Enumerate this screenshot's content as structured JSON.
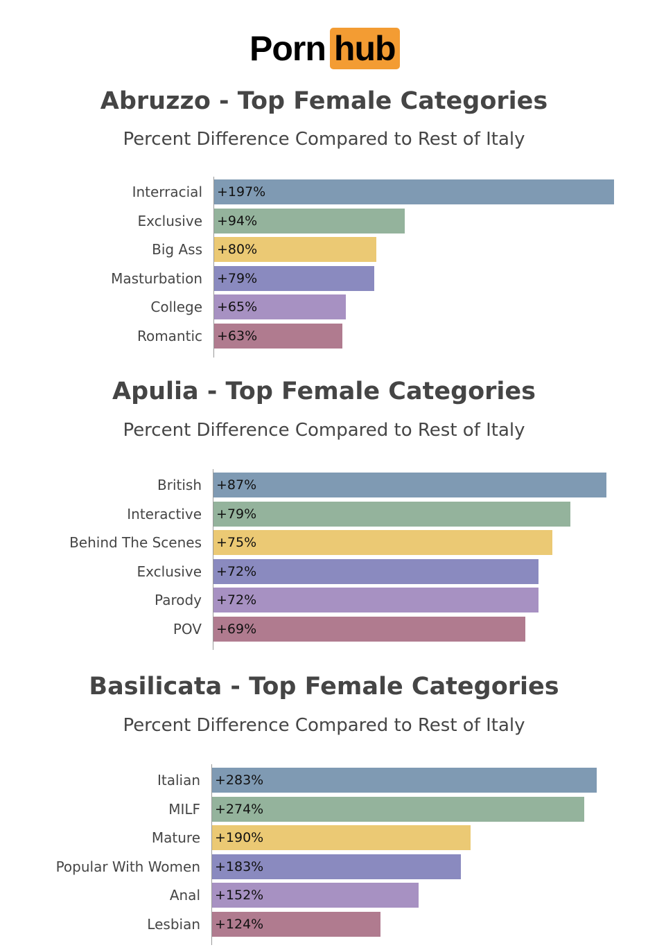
{
  "logo": {
    "part1": "Porn",
    "part2": "hub",
    "accent": "#f39c33"
  },
  "colors": [
    "#7f9ab3",
    "#94b39c",
    "#ebc974",
    "#8a8abf",
    "#a791c2",
    "#b07b8f"
  ],
  "chart_data": [
    {
      "type": "bar",
      "orientation": "horizontal",
      "title": "Abruzzo - Top Female Categories",
      "subtitle": "Percent Difference Compared to Rest of Italy",
      "categories": [
        "Interracial",
        "Exclusive",
        "Big Ass",
        "Masturbation",
        "College",
        "Romantic"
      ],
      "values": [
        197,
        94,
        80,
        79,
        65,
        63
      ],
      "labels": [
        "+197%",
        "+94%",
        "+80%",
        "+79%",
        "+65%",
        "+63%"
      ],
      "grid": false
    },
    {
      "type": "bar",
      "orientation": "horizontal",
      "title": "Apulia - Top Female Categories",
      "subtitle": "Percent Difference Compared to Rest of Italy",
      "categories": [
        "British",
        "Interactive",
        "Behind The Scenes",
        "Exclusive",
        "Parody",
        "POV"
      ],
      "values": [
        87,
        79,
        75,
        72,
        72,
        69
      ],
      "labels": [
        "+87%",
        "+79%",
        "+75%",
        "+72%",
        "+72%",
        "+69%"
      ],
      "grid": false
    },
    {
      "type": "bar",
      "orientation": "horizontal",
      "title": "Basilicata - Top Female Categories",
      "subtitle": "Percent Difference Compared to Rest of Italy",
      "categories": [
        "Italian",
        "MILF",
        "Mature",
        "Popular With Women",
        "Anal",
        "Lesbian"
      ],
      "values": [
        283,
        274,
        190,
        183,
        152,
        124
      ],
      "labels": [
        "+283%",
        "+274%",
        "+190%",
        "+183%",
        "+152%",
        "+124%"
      ],
      "grid": false
    }
  ]
}
